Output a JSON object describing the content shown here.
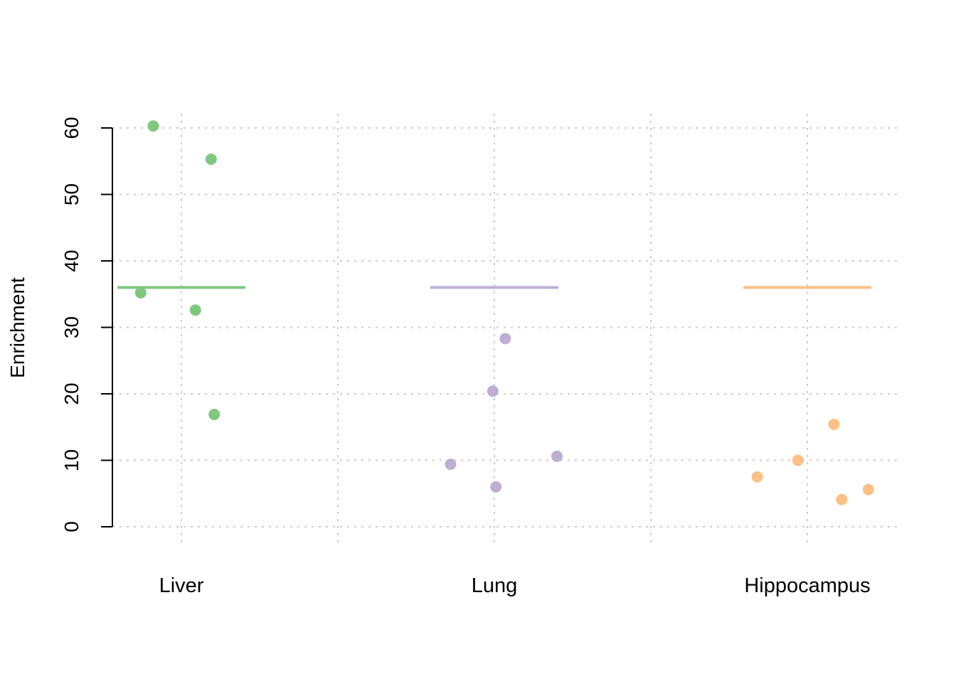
{
  "chart_data": {
    "type": "scatter",
    "ylabel": "Enrichment",
    "xlabel": "",
    "ylim": [
      0,
      60
    ],
    "yticks": [
      0,
      10,
      20,
      30,
      40,
      50,
      60
    ],
    "grid": true,
    "categories": [
      "Liver",
      "Lung",
      "Hippocampus"
    ],
    "mean_line_value": 36,
    "series": [
      {
        "category": "Liver",
        "color": "#7fc97f",
        "points": [
          {
            "x": -0.18,
            "y": 60.3
          },
          {
            "x": 0.19,
            "y": 55.3
          },
          {
            "x": -0.26,
            "y": 35.2
          },
          {
            "x": 0.09,
            "y": 32.6
          },
          {
            "x": 0.21,
            "y": 16.9
          }
        ]
      },
      {
        "category": "Lung",
        "color": "#beaed4",
        "points": [
          {
            "x": 0.07,
            "y": 28.3
          },
          {
            "x": -0.01,
            "y": 20.4
          },
          {
            "x": 0.4,
            "y": 10.6
          },
          {
            "x": -0.28,
            "y": 9.4
          },
          {
            "x": 0.01,
            "y": 6.0
          }
        ]
      },
      {
        "category": "Hippocampus",
        "color": "#fdc086",
        "points": [
          {
            "x": 0.17,
            "y": 15.4
          },
          {
            "x": -0.06,
            "y": 10.0
          },
          {
            "x": -0.32,
            "y": 7.5
          },
          {
            "x": 0.39,
            "y": 5.6
          },
          {
            "x": 0.22,
            "y": 4.1
          }
        ]
      }
    ]
  }
}
